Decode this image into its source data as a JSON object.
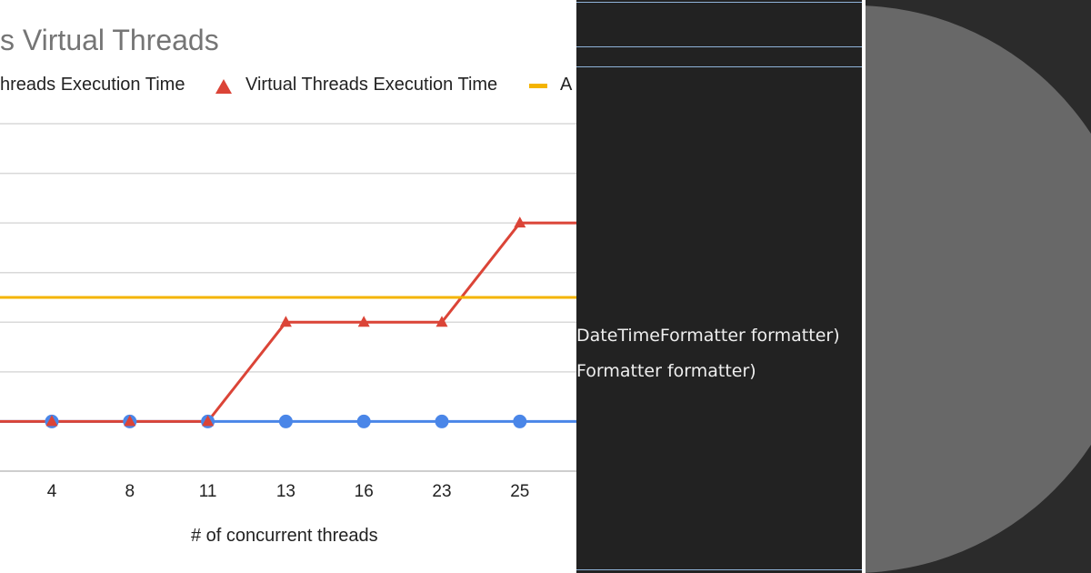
{
  "chart_data": {
    "type": "line",
    "title": "s Virtual Threads",
    "xlabel": "# of concurrent threads",
    "categories": [
      "4",
      "8",
      "11",
      "13",
      "16",
      "23",
      "25"
    ],
    "ylim": [
      0,
      7
    ],
    "grid": true,
    "legend_placement": "top",
    "series": [
      {
        "name": "hreads Execution Time",
        "values": [
          1,
          1,
          1,
          1,
          1,
          1,
          1
        ],
        "marker": "circle",
        "color": "#4a86e8"
      },
      {
        "name": "Virtual Threads Execution Time",
        "values": [
          1,
          1,
          1,
          3,
          3,
          3,
          5
        ],
        "marker": "triangle",
        "color": "#db4437"
      },
      {
        "name": "A",
        "values": [
          3.5,
          3.5,
          3.5,
          3.5,
          3.5,
          3.5,
          3.5
        ],
        "marker": "line",
        "color": "#f4b400"
      }
    ]
  },
  "code_panel": {
    "lines": [
      "DateTimeFormatter formatter)",
      "Formatter formatter)"
    ]
  }
}
